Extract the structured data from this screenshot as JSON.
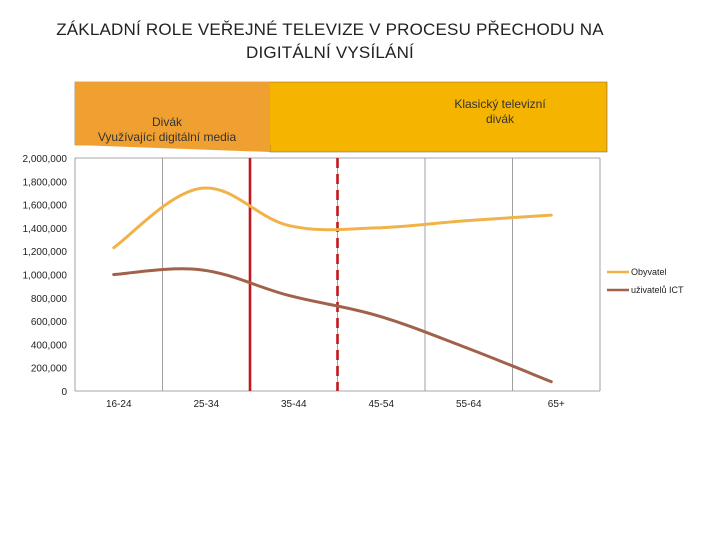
{
  "page": {
    "title_line1": "ZÁKLADNÍ ROLE VEŘEJNÉ TELEVIZE V PROCESU PŘECHODU NA",
    "title_line2": "DIGITÁLNÍ VYSÍLÁNÍ"
  },
  "banner": {
    "left_label_line1": "Divák",
    "left_label_line2": "Využívající digitální media",
    "right_label_line1": "Klasický televizní",
    "right_label_line2": "divák",
    "colors": {
      "left": "#f0a030",
      "right": "#f5b400",
      "border": "#7a6040"
    }
  },
  "chart_data": {
    "type": "line",
    "categories": [
      "16-24",
      "25-34",
      "35-44",
      "45-54",
      "55-64",
      "65+"
    ],
    "yticks": [
      "0",
      "200,000",
      "400,000",
      "600,000",
      "800,000",
      "1,000,000",
      "1,200,000",
      "1,400,000",
      "1,600,000",
      "1,800,000",
      "2,000,000"
    ],
    "ylim": [
      0,
      2000000
    ],
    "grid": {
      "vertical": true,
      "horizontal": false
    },
    "legend_position": "right",
    "series": [
      {
        "name": "Obyvatel",
        "color": "#f2b24a",
        "values": [
          1230000,
          1740000,
          1420000,
          1400000,
          1460000,
          1510000
        ]
      },
      {
        "name": "uživatelů ICT",
        "color": "#a0624a",
        "values": [
          1000000,
          1040000,
          820000,
          650000,
          380000,
          80000
        ]
      }
    ],
    "reference_lines": [
      {
        "style": "solid",
        "color": "#c0191f",
        "between": [
          "25-34",
          "35-44"
        ]
      },
      {
        "style": "dashed",
        "color": "#c0191f",
        "between": [
          "35-44",
          "45-54"
        ]
      }
    ]
  }
}
